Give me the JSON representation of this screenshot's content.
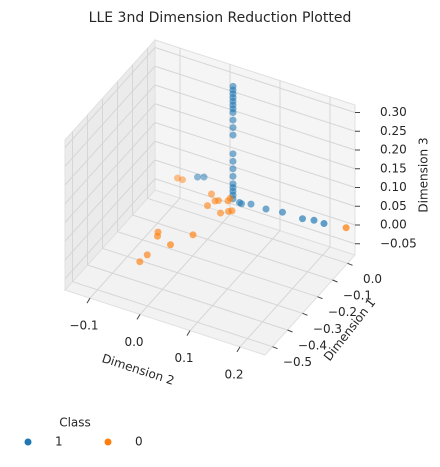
{
  "chart_data": {
    "type": "scatter3d",
    "title": "LLE 3nd Dimension Reduction Plotted",
    "xlabel": "Dimension 2",
    "ylabel": "Dimension 1",
    "zlabel": "Dimension 3",
    "legend_title": "Class",
    "legend": "lower left",
    "grid": true,
    "xlim": [
      -0.15,
      0.25
    ],
    "ylim": [
      -0.55,
      0.05
    ],
    "zlim": [
      -0.08,
      0.32
    ],
    "xticks": [
      {
        "value": -0.1,
        "label": "−0.1"
      },
      {
        "value": 0,
        "label": "0.0"
      },
      {
        "value": 0.1,
        "label": "0.1"
      },
      {
        "value": 0.2,
        "label": "0.2"
      }
    ],
    "yticks": [
      {
        "value": 0,
        "label": "0.0"
      },
      {
        "value": -0.1,
        "label": "−0.1"
      },
      {
        "value": -0.2,
        "label": "−0.2"
      },
      {
        "value": -0.3,
        "label": "−0.3"
      },
      {
        "value": -0.4,
        "label": "−0.4"
      },
      {
        "value": -0.5,
        "label": "−0.5"
      }
    ],
    "zticks": [
      {
        "value": 0.3,
        "label": "0.30"
      },
      {
        "value": 0.25,
        "label": "0.25"
      },
      {
        "value": 0.2,
        "label": "0.20"
      },
      {
        "value": 0.15,
        "label": "0.15"
      },
      {
        "value": 0.1,
        "label": "0.10"
      },
      {
        "value": 0.05,
        "label": "0.05"
      },
      {
        "value": 0,
        "label": "0.00"
      },
      {
        "value": -0.05,
        "label": "−0.05"
      }
    ],
    "series": [
      {
        "name": "1",
        "color": "#1f77b4",
        "x": [
          0.03,
          0.03,
          0.03,
          0.03,
          0.03,
          0.03,
          0.03,
          0.03,
          0.03,
          0.03,
          0.03,
          0.03,
          0.03,
          0.03,
          0.03,
          0.03,
          0.03,
          0.03,
          0.03,
          0.03,
          0.06,
          0.09,
          0.12,
          0.16,
          0.18,
          0.2,
          -0.05,
          -0.04,
          0.04,
          0.05
        ],
        "y": [
          -0.03,
          -0.03,
          -0.03,
          -0.03,
          -0.03,
          -0.03,
          -0.03,
          -0.03,
          -0.03,
          -0.03,
          -0.03,
          -0.03,
          -0.03,
          -0.03,
          -0.03,
          -0.03,
          -0.03,
          -0.03,
          -0.03,
          -0.03,
          -0.01,
          -0.01,
          0.0,
          0.0,
          0.01,
          0.01,
          0.0,
          0.01,
          -0.02,
          -0.04
        ],
        "z": [
          0.31,
          0.3,
          0.29,
          0.28,
          0.27,
          0.26,
          0.25,
          0.24,
          0.22,
          0.2,
          0.18,
          0.13,
          0.11,
          0.09,
          0.07,
          0.05,
          0.04,
          0.03,
          0.02,
          0.01,
          0.0,
          0.0,
          0.0,
          0.0,
          0.0,
          0.0,
          0.02,
          0.02,
          0.0,
          0.01
        ]
      },
      {
        "name": "0",
        "color": "#ff7f0e",
        "x": [
          0.0,
          0.01,
          0.02,
          0.03,
          0.04,
          -0.01,
          0.02,
          0.03,
          -0.09,
          -0.08,
          0.24,
          -0.045,
          0.013,
          -0.008,
          -0.056,
          -0.058,
          -0.04,
          0.0
        ],
        "y": [
          -0.05,
          -0.06,
          -0.08,
          -0.05,
          -0.07,
          -0.04,
          -0.03,
          -0.06,
          0.0,
          0.0,
          0.024,
          -0.28,
          -0.24,
          -0.32,
          -0.315,
          -0.358,
          -0.3,
          -0.1
        ],
        "z": [
          0.0,
          0.01,
          -0.01,
          0.02,
          0.0,
          0.01,
          0.0,
          -0.01,
          0.0,
          0.0,
          0.0,
          0.0,
          0.0,
          0.0,
          -0.05,
          -0.05,
          0.0,
          0.01
        ]
      }
    ]
  }
}
